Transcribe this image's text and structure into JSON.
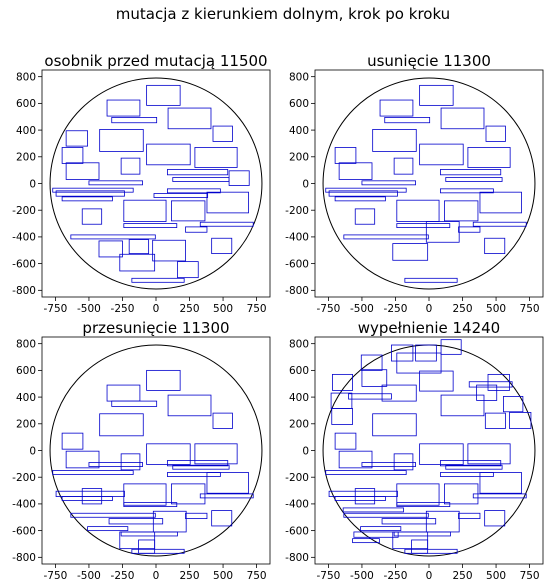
{
  "figure": {
    "title": "mutacja z kierunkiem dolnym, krok po kroku"
  },
  "chart_data": [
    {
      "type": "scatter",
      "title": "osobnik przed mutacją 11500",
      "xlim": [
        -850,
        850
      ],
      "ylim": [
        -850,
        850
      ],
      "xticks": [
        -750,
        -500,
        -250,
        0,
        250,
        500,
        750
      ],
      "yticks": [
        -800,
        -600,
        -400,
        -200,
        0,
        200,
        400,
        600,
        800
      ],
      "circle": {
        "cx": 0,
        "cy": 0,
        "r": 790
      },
      "rect_color": "#0000cc",
      "rectangles": [
        [
          -365,
          505,
          245,
          120
        ],
        [
          -70,
          585,
          250,
          150
        ],
        [
          -330,
          455,
          335,
          40
        ],
        [
          90,
          410,
          320,
          155
        ],
        [
          -420,
          240,
          325,
          165
        ],
        [
          -670,
          280,
          160,
          115
        ],
        [
          425,
          315,
          145,
          115
        ],
        [
          -700,
          150,
          155,
          120
        ],
        [
          -260,
          70,
          140,
          120
        ],
        [
          -70,
          140,
          325,
          155
        ],
        [
          290,
          120,
          315,
          150
        ],
        [
          -670,
          30,
          245,
          125
        ],
        [
          545,
          -15,
          150,
          110
        ],
        [
          -770,
          -65,
          600,
          30
        ],
        [
          -500,
          -10,
          400,
          30
        ],
        [
          85,
          65,
          450,
          40
        ],
        [
          125,
          15,
          420,
          30
        ],
        [
          85,
          -70,
          395,
          30
        ],
        [
          -745,
          -95,
          510,
          40
        ],
        [
          -15,
          -105,
          400,
          30
        ],
        [
          -700,
          -130,
          375,
          30
        ],
        [
          380,
          -220,
          310,
          155
        ],
        [
          -240,
          -285,
          315,
          160
        ],
        [
          115,
          -280,
          250,
          150
        ],
        [
          -550,
          -305,
          145,
          115
        ],
        [
          -240,
          -330,
          395,
          30
        ],
        [
          330,
          -320,
          395,
          30
        ],
        [
          -635,
          -415,
          630,
          30
        ],
        [
          220,
          -365,
          160,
          40
        ],
        [
          -200,
          -525,
          145,
          105
        ],
        [
          -425,
          -550,
          175,
          120
        ],
        [
          -25,
          -580,
          245,
          155
        ],
        [
          415,
          -525,
          150,
          115
        ],
        [
          -270,
          -655,
          260,
          125
        ],
        [
          160,
          -705,
          155,
          120
        ],
        [
          -180,
          -740,
          390,
          30
        ]
      ]
    },
    {
      "type": "scatter",
      "title": "usunięcie 11300",
      "xlim": [
        -850,
        850
      ],
      "ylim": [
        -850,
        850
      ],
      "xticks": [
        -750,
        -500,
        -250,
        0,
        250,
        500,
        750
      ],
      "yticks": [
        -800,
        -600,
        -400,
        -200,
        0,
        200,
        400,
        600,
        800
      ],
      "circle": {
        "cx": 0,
        "cy": 0,
        "r": 790
      },
      "rect_color": "#0000cc",
      "rectangles": [
        [
          -365,
          505,
          245,
          120
        ],
        [
          -70,
          585,
          250,
          150
        ],
        [
          -330,
          455,
          335,
          40
        ],
        [
          90,
          410,
          320,
          155
        ],
        [
          -420,
          240,
          325,
          165
        ],
        [
          425,
          315,
          145,
          115
        ],
        [
          -700,
          150,
          155,
          120
        ],
        [
          -260,
          70,
          140,
          120
        ],
        [
          -70,
          140,
          325,
          155
        ],
        [
          290,
          120,
          315,
          150
        ],
        [
          -670,
          30,
          245,
          125
        ],
        [
          -770,
          -65,
          600,
          30
        ],
        [
          -500,
          -10,
          400,
          30
        ],
        [
          85,
          65,
          450,
          40
        ],
        [
          125,
          15,
          420,
          30
        ],
        [
          85,
          -70,
          395,
          30
        ],
        [
          -745,
          -95,
          510,
          40
        ],
        [
          -700,
          -130,
          375,
          30
        ],
        [
          380,
          -220,
          310,
          155
        ],
        [
          -240,
          -285,
          315,
          160
        ],
        [
          115,
          -280,
          250,
          150
        ],
        [
          -550,
          -305,
          145,
          115
        ],
        [
          -240,
          -330,
          395,
          30
        ],
        [
          330,
          -320,
          395,
          30
        ],
        [
          -635,
          -415,
          630,
          30
        ],
        [
          220,
          -365,
          160,
          40
        ],
        [
          -20,
          -440,
          245,
          155
        ],
        [
          415,
          -525,
          150,
          115
        ],
        [
          -270,
          -575,
          260,
          125
        ],
        [
          -180,
          -740,
          390,
          30
        ]
      ]
    },
    {
      "type": "scatter",
      "title": "przesunięcie 11300",
      "xlim": [
        -850,
        850
      ],
      "ylim": [
        -850,
        850
      ],
      "xticks": [
        -750,
        -500,
        -250,
        0,
        250,
        500,
        750
      ],
      "yticks": [
        -800,
        -600,
        -400,
        -200,
        0,
        200,
        400,
        600,
        800
      ],
      "circle": {
        "cx": 0,
        "cy": 0,
        "r": 790
      },
      "rect_color": "#0000cc",
      "rectangles": [
        [
          -365,
          370,
          245,
          120
        ],
        [
          -70,
          450,
          250,
          150
        ],
        [
          -330,
          330,
          335,
          40
        ],
        [
          90,
          260,
          320,
          155
        ],
        [
          -420,
          110,
          325,
          165
        ],
        [
          425,
          165,
          145,
          115
        ],
        [
          -700,
          10,
          155,
          120
        ],
        [
          -260,
          -145,
          140,
          120
        ],
        [
          -70,
          -105,
          325,
          155
        ],
        [
          290,
          -100,
          315,
          150
        ],
        [
          -670,
          -130,
          245,
          125
        ],
        [
          -770,
          -180,
          600,
          30
        ],
        [
          -500,
          -120,
          400,
          30
        ],
        [
          85,
          -115,
          450,
          40
        ],
        [
          125,
          -140,
          420,
          30
        ],
        [
          85,
          -195,
          395,
          30
        ],
        [
          -745,
          -345,
          510,
          40
        ],
        [
          -700,
          -375,
          375,
          30
        ],
        [
          380,
          -320,
          310,
          155
        ],
        [
          -240,
          -410,
          315,
          160
        ],
        [
          115,
          -400,
          250,
          150
        ],
        [
          -550,
          -400,
          145,
          115
        ],
        [
          -240,
          -420,
          395,
          30
        ],
        [
          330,
          -355,
          395,
          30
        ],
        [
          -635,
          -500,
          630,
          30
        ],
        [
          220,
          -510,
          160,
          40
        ],
        [
          -20,
          -610,
          245,
          155
        ],
        [
          415,
          -565,
          150,
          115
        ],
        [
          -270,
          -735,
          260,
          125
        ],
        [
          -180,
          -770,
          390,
          30
        ],
        [
          -510,
          -600,
          300,
          30
        ],
        [
          -260,
          -640,
          420,
          30
        ],
        [
          -350,
          -550,
          400,
          40
        ],
        [
          -130,
          -770,
          120,
          100
        ]
      ]
    },
    {
      "type": "scatter",
      "title": "wypełnienie 14240",
      "xlim": [
        -850,
        850
      ],
      "ylim": [
        -850,
        850
      ],
      "xticks": [
        -750,
        -500,
        -250,
        0,
        250,
        500,
        750
      ],
      "yticks": [
        -800,
        -600,
        -400,
        -200,
        0,
        200,
        400,
        600,
        800
      ],
      "circle": {
        "cx": 0,
        "cy": 0,
        "r": 790
      },
      "rect_color": "#0000cc",
      "rectangles": [
        [
          -280,
          670,
          160,
          120
        ],
        [
          -100,
          670,
          155,
          120
        ],
        [
          90,
          720,
          150,
          110
        ],
        [
          -505,
          600,
          155,
          115
        ],
        [
          -240,
          580,
          330,
          150
        ],
        [
          -600,
          385,
          320,
          40
        ],
        [
          -720,
          450,
          150,
          120
        ],
        [
          -730,
          315,
          155,
          115
        ],
        [
          -500,
          480,
          185,
          125
        ],
        [
          -350,
          370,
          255,
          120
        ],
        [
          -70,
          445,
          250,
          150
        ],
        [
          90,
          260,
          320,
          155
        ],
        [
          300,
          475,
          320,
          40
        ],
        [
          440,
          450,
          160,
          120
        ],
        [
          355,
          375,
          150,
          115
        ],
        [
          555,
          290,
          145,
          115
        ],
        [
          -420,
          110,
          325,
          165
        ],
        [
          -700,
          10,
          155,
          120
        ],
        [
          -725,
          195,
          155,
          120
        ],
        [
          420,
          165,
          150,
          115
        ],
        [
          600,
          165,
          160,
          120
        ],
        [
          -70,
          -105,
          325,
          155
        ],
        [
          290,
          -100,
          315,
          150
        ],
        [
          -670,
          -130,
          245,
          125
        ],
        [
          -770,
          -180,
          600,
          30
        ],
        [
          -260,
          -145,
          140,
          120
        ],
        [
          -500,
          -120,
          400,
          30
        ],
        [
          85,
          -115,
          450,
          40
        ],
        [
          125,
          -140,
          420,
          30
        ],
        [
          85,
          -195,
          395,
          30
        ],
        [
          -745,
          -345,
          510,
          40
        ],
        [
          -700,
          -375,
          375,
          30
        ],
        [
          380,
          -320,
          310,
          155
        ],
        [
          -240,
          -410,
          315,
          160
        ],
        [
          115,
          -400,
          250,
          150
        ],
        [
          -550,
          -400,
          145,
          115
        ],
        [
          -240,
          -420,
          395,
          30
        ],
        [
          330,
          -355,
          395,
          30
        ],
        [
          -635,
          -500,
          630,
          30
        ],
        [
          220,
          -510,
          160,
          40
        ],
        [
          -20,
          -610,
          245,
          155
        ],
        [
          415,
          -565,
          150,
          115
        ],
        [
          -270,
          -735,
          260,
          125
        ],
        [
          -180,
          -770,
          390,
          30
        ],
        [
          -510,
          -600,
          300,
          30
        ],
        [
          -260,
          -640,
          420,
          30
        ],
        [
          -350,
          -550,
          400,
          40
        ],
        [
          -130,
          -770,
          120,
          100
        ],
        [
          -640,
          -460,
          450,
          30
        ],
        [
          -570,
          -690,
          200,
          30
        ],
        [
          -560,
          -650,
          330,
          40
        ]
      ]
    }
  ]
}
